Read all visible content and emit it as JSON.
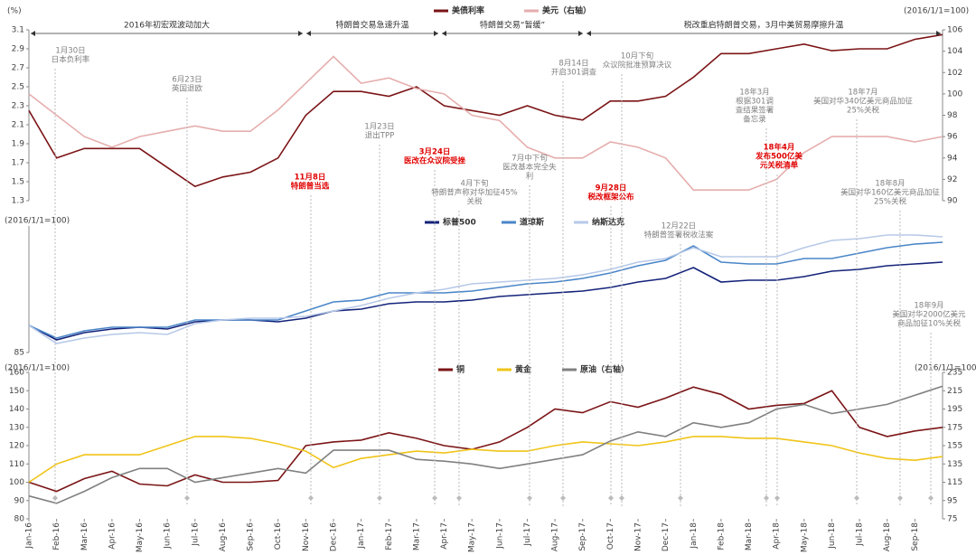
{
  "chart_data": [
    {
      "type": "line",
      "y_label": "(%)",
      "y2_label": "(2016/1/1=100)",
      "ylim": [
        1.3,
        3.1
      ],
      "yticks": [
        1.3,
        1.5,
        1.7,
        1.9,
        2.1,
        2.3,
        2.5,
        2.7,
        2.9,
        3.1
      ],
      "y2lim": [
        90,
        106
      ],
      "y2ticks": [
        90,
        92,
        94,
        96,
        98,
        100,
        102,
        104,
        106
      ],
      "series": [
        {
          "name": "美债利率",
          "color": "#7b1416",
          "values": [
            2.25,
            1.75,
            1.85,
            1.85,
            1.85,
            1.65,
            1.45,
            1.55,
            1.6,
            1.75,
            2.2,
            2.45,
            2.45,
            2.4,
            2.5,
            2.3,
            2.25,
            2.2,
            2.3,
            2.2,
            2.15,
            2.35,
            2.35,
            2.4,
            2.6,
            2.85,
            2.85,
            2.9,
            2.95,
            2.88,
            2.9,
            2.9,
            3.0,
            3.05
          ]
        },
        {
          "name": "美元（右轴）",
          "color": "#e6aeae",
          "axis": "y2",
          "values": [
            100,
            98,
            96,
            95,
            96,
            96.5,
            97,
            96.5,
            96.5,
            98.5,
            101,
            103.5,
            101,
            101.5,
            100.5,
            100,
            98,
            97.5,
            95,
            94,
            94,
            95.5,
            95,
            94,
            91,
            91,
            91,
            92,
            94.5,
            96,
            96,
            96,
            95.5,
            96
          ]
        }
      ],
      "phases": [
        "2016年初宏观波动加大",
        "特朗普交易急速升温",
        "特朗普交易“暂缓”",
        "税改重启特朗普交易，3月中美贸易摩擦升温"
      ],
      "annotations": [
        {
          "lines": [
            "1月30日",
            "日本负利率"
          ],
          "color": "#808080"
        },
        {
          "lines": [
            "6月23日",
            "英国退欧"
          ],
          "color": "#808080"
        },
        {
          "lines": [
            "11月8日",
            "特朗普当选"
          ],
          "color": "#e00000"
        },
        {
          "lines": [
            "1月23日",
            "退出TPP"
          ],
          "color": "#808080"
        },
        {
          "lines": [
            "3月24日",
            "医改在众议院受挫"
          ],
          "color": "#e00000"
        },
        {
          "lines": [
            "4月下旬",
            "特朗普声称对华加征45%",
            "关税"
          ],
          "color": "#808080"
        },
        {
          "lines": [
            "7月中下旬",
            "医改基本完全失",
            "利"
          ],
          "color": "#808080"
        },
        {
          "lines": [
            "8月14日",
            "开启301调查"
          ],
          "color": "#808080"
        },
        {
          "lines": [
            "9月28日",
            "税改框架公布"
          ],
          "color": "#e00000"
        },
        {
          "lines": [
            "10月下旬",
            "众议院批准预算决议"
          ],
          "color": "#808080"
        },
        {
          "lines": [
            "12月22日",
            "特朗普签署税收法案"
          ],
          "color": "#808080"
        },
        {
          "lines": [
            "18年3月",
            "根据301调",
            "查结果签署",
            "备忘录"
          ],
          "color": "#808080"
        },
        {
          "lines": [
            "18年4月",
            "发布500亿美",
            "元关税清单"
          ],
          "color": "#e00000"
        },
        {
          "lines": [
            "18年7月",
            "美国对华340亿美元商品加征",
            "25%关税"
          ],
          "color": "#808080"
        },
        {
          "lines": [
            "18年8月",
            "美国对华160亿美元商品加征",
            "25%关税"
          ],
          "color": "#808080"
        },
        {
          "lines": [
            "18年9月",
            "美国对华2000亿美元",
            "商品加征10%关税"
          ],
          "color": "#808080"
        }
      ]
    },
    {
      "type": "line",
      "y_label": "(2016/1/1=100)",
      "ylim": [
        85,
        155
      ],
      "yticks": [
        85
      ],
      "series": [
        {
          "name": "标普500",
          "color": "#14237a",
          "values": [
            100,
            92,
            96,
            98,
            99,
            98,
            102,
            103,
            103,
            102,
            104,
            108,
            109,
            112,
            113,
            113,
            114,
            116,
            117,
            118,
            119,
            121,
            124,
            126,
            132,
            124,
            125,
            125,
            127,
            130,
            131,
            133,
            134,
            135
          ]
        },
        {
          "name": "道琼斯",
          "color": "#4a86c8",
          "values": [
            100,
            93,
            97,
            99,
            99,
            99,
            103,
            103,
            103,
            103,
            108,
            113,
            114,
            118,
            118,
            118,
            119,
            121,
            123,
            124,
            126,
            129,
            133,
            136,
            144,
            135,
            134,
            134,
            137,
            137,
            140,
            143,
            145,
            146
          ]
        },
        {
          "name": "纳斯达克",
          "color": "#b7c9e8",
          "values": [
            100,
            90,
            93,
            95,
            96,
            95,
            101,
            103,
            104,
            104,
            105,
            108,
            111,
            115,
            118,
            120,
            123,
            124,
            125,
            126,
            128,
            131,
            135,
            137,
            143,
            138,
            138,
            138,
            143,
            147,
            148,
            150,
            150,
            149
          ]
        }
      ]
    },
    {
      "type": "line",
      "y_label": "(2016/1/1=100)",
      "y2_label": "(2016/1/1=100)",
      "ylim": [
        80,
        160
      ],
      "yticks": [
        80,
        90,
        100,
        110,
        120,
        130,
        140,
        150,
        160
      ],
      "y2lim": [
        75,
        235
      ],
      "y2ticks": [
        75,
        95,
        115,
        135,
        155,
        175,
        195,
        215,
        235
      ],
      "categories": [
        "Jan-16",
        "Feb-16",
        "Mar-16",
        "Apr-16",
        "May-16",
        "Jun-16",
        "Jul-16",
        "Aug-16",
        "Sep-16",
        "Oct-16",
        "Nov-16",
        "Dec-16",
        "Jan-17",
        "Feb-17",
        "Mar-17",
        "Apr-17",
        "May-17",
        "Jun-17",
        "Jul-17",
        "Aug-17",
        "Sep-17",
        "Oct-17",
        "Nov-17",
        "Dec-17",
        "Jan-18",
        "Feb-18",
        "Mar-18",
        "Apr-18",
        "May-18",
        "Jun-18",
        "Jul-18",
        "Aug-18",
        "Sep-18",
        null
      ],
      "series": [
        {
          "name": "铜",
          "color": "#7b1416",
          "values": [
            100,
            95,
            102,
            106,
            99,
            98,
            104,
            100,
            100,
            101,
            120,
            122,
            123,
            127,
            124,
            120,
            118,
            122,
            130,
            140,
            138,
            144,
            141,
            146,
            152,
            148,
            140,
            142,
            143,
            150,
            130,
            125,
            128,
            130
          ]
        },
        {
          "name": "黄金",
          "color": "#f0c419",
          "values": [
            100,
            110,
            115,
            115,
            115,
            120,
            125,
            125,
            124,
            121,
            117,
            108,
            113,
            115,
            117,
            116,
            118,
            117,
            117,
            120,
            122,
            121,
            120,
            122,
            125,
            125,
            124,
            124,
            122,
            120,
            116,
            113,
            112,
            114
          ]
        },
        {
          "name": "原油（右轴）",
          "color": "#808080",
          "axis": "y2",
          "values": [
            100,
            92,
            105,
            120,
            130,
            130,
            115,
            120,
            125,
            130,
            125,
            150,
            150,
            150,
            140,
            138,
            135,
            130,
            135,
            140,
            145,
            160,
            170,
            165,
            180,
            175,
            180,
            195,
            200,
            190,
            195,
            200,
            210,
            220
          ]
        }
      ]
    }
  ]
}
